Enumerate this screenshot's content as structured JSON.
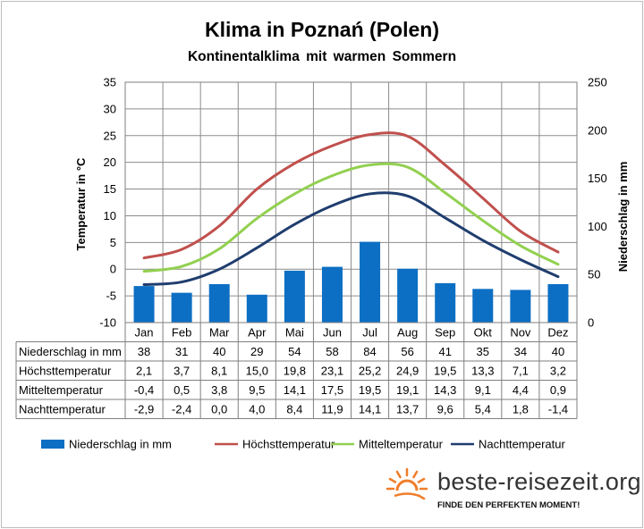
{
  "chart_data": {
    "type": "bar",
    "title": "Klima in Poznań (Polen)",
    "subtitle": "Kontinentalklima mit warmen Sommern",
    "ylabel": "Temperatur in °C",
    "y2label": "Niederschlag in mm",
    "ylim": [
      -10,
      35
    ],
    "y2lim": [
      0,
      250
    ],
    "yticks": [
      "35",
      "30",
      "25",
      "20",
      "15",
      "10",
      "5",
      "0",
      "-5",
      "-10"
    ],
    "y2ticks": [
      "250",
      "200",
      "150",
      "100",
      "50",
      "0"
    ],
    "categories": [
      "Jan",
      "Feb",
      "Mar",
      "Apr",
      "Mai",
      "Jun",
      "Jul",
      "Aug",
      "Sep",
      "Okt",
      "Nov",
      "Dez"
    ],
    "legend_position": "bottom",
    "grid": true,
    "series": [
      {
        "name": "Niederschlag in mm",
        "kind": "bar",
        "axis": "right",
        "color": "#0c6fc3",
        "values": [
          38,
          31,
          40,
          29,
          54,
          58,
          84,
          56,
          41,
          35,
          34,
          40
        ],
        "labels": [
          "38",
          "31",
          "40",
          "29",
          "54",
          "58",
          "84",
          "56",
          "41",
          "35",
          "34",
          "40"
        ]
      },
      {
        "name": "Höchsttemperatur",
        "kind": "line",
        "axis": "left",
        "color": "#c0504d",
        "values": [
          2.1,
          3.7,
          8.1,
          15.0,
          19.8,
          23.1,
          25.2,
          24.9,
          19.5,
          13.3,
          7.1,
          3.2
        ],
        "labels": [
          "2,1",
          "3,7",
          "8,1",
          "15,0",
          "19,8",
          "23,1",
          "25,2",
          "24,9",
          "19,5",
          "13,3",
          "7,1",
          "3,2"
        ]
      },
      {
        "name": "Mitteltemperatur",
        "kind": "line",
        "axis": "left",
        "color": "#92d050",
        "values": [
          -0.4,
          0.5,
          3.8,
          9.5,
          14.1,
          17.5,
          19.5,
          19.1,
          14.3,
          9.1,
          4.4,
          0.9
        ],
        "labels": [
          "-0,4",
          "0,5",
          "3,8",
          "9,5",
          "14,1",
          "17,5",
          "19,5",
          "19,1",
          "14,3",
          "9,1",
          "4,4",
          "0,9"
        ]
      },
      {
        "name": "Nachttemperatur",
        "kind": "line",
        "axis": "left",
        "color": "#1f3d6e",
        "values": [
          -2.9,
          -2.4,
          0.0,
          4.0,
          8.4,
          11.9,
          14.1,
          13.7,
          9.6,
          5.4,
          1.8,
          -1.4
        ],
        "labels": [
          "-2,9",
          "-2,4",
          "0,0",
          "4,0",
          "8,4",
          "11,9",
          "14,1",
          "13,7",
          "9,6",
          "5,4",
          "1,8",
          "-1,4"
        ]
      }
    ]
  },
  "branding": {
    "site": "beste-reisezeit.org",
    "tagline": "FINDE DEN PERFEKTEN MOMENT!",
    "sun_icon": "sun-icon",
    "sun_color": "#f07d2a"
  }
}
